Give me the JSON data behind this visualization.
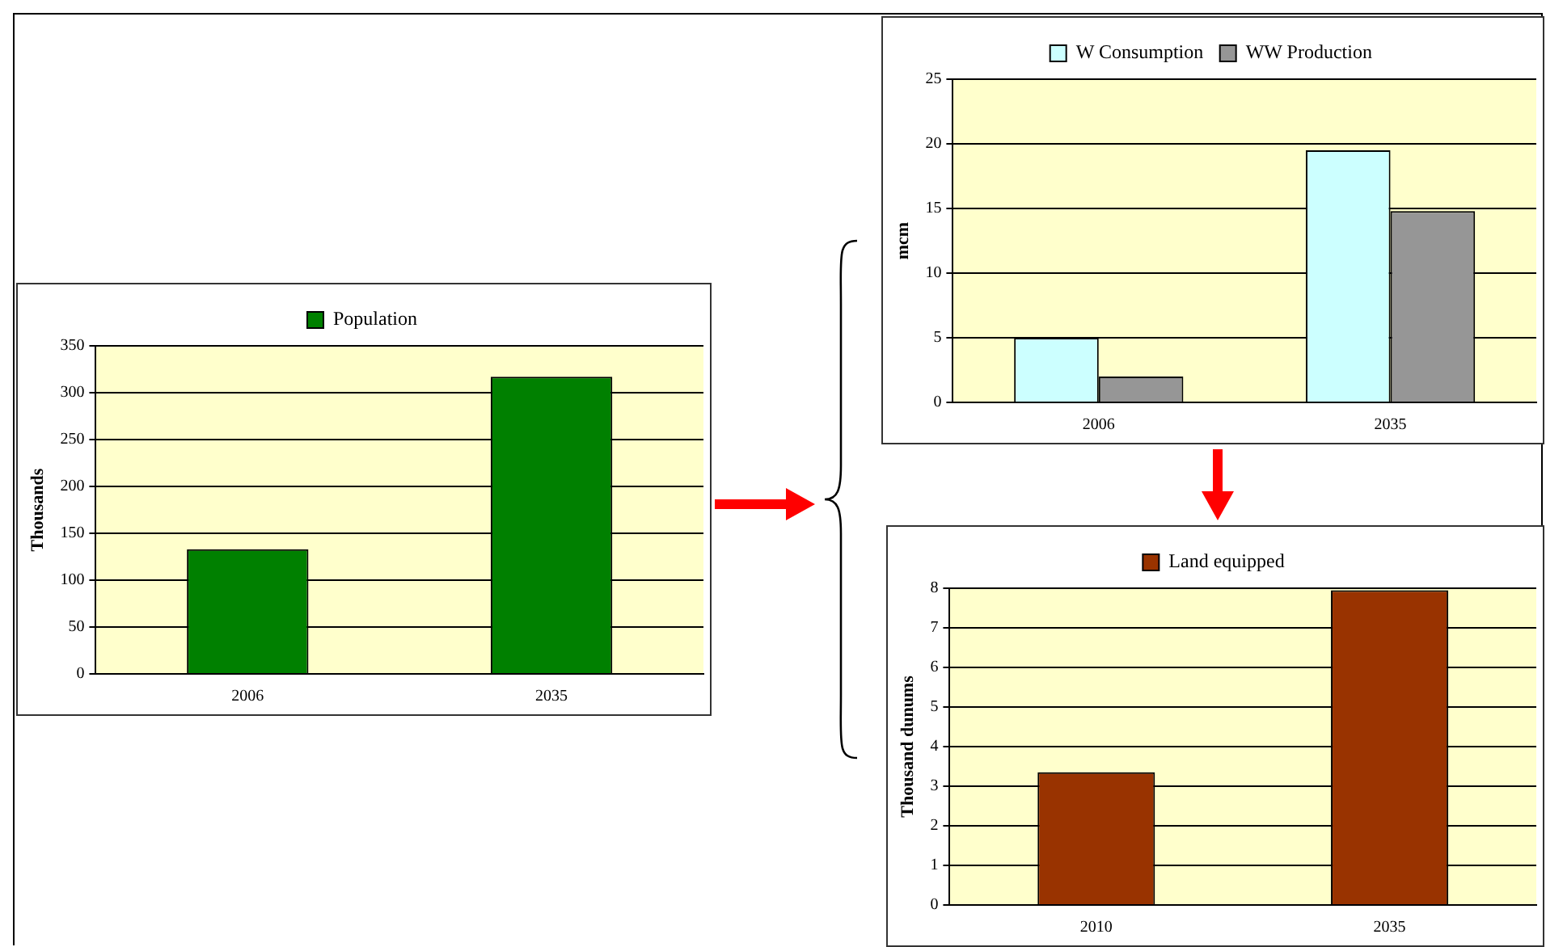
{
  "chart_data": [
    {
      "type": "bar",
      "ylabel": "Thousands",
      "categories": [
        "2006",
        "2035"
      ],
      "series": [
        {
          "name": "Population",
          "color": "#008000",
          "values": [
            133,
            317
          ]
        }
      ],
      "ylim": [
        0,
        350
      ],
      "yticks": [
        0,
        50,
        100,
        150,
        200,
        250,
        300,
        350
      ],
      "grid": "y",
      "legend": "top"
    },
    {
      "type": "bar",
      "ylabel": "mcm",
      "categories": [
        "2006",
        "2035"
      ],
      "series": [
        {
          "name": "W Consumption",
          "color": "#ccffff",
          "values": [
            5,
            19.5
          ]
        },
        {
          "name": "WW Production",
          "color": "#969696",
          "values": [
            2,
            14.8
          ]
        }
      ],
      "ylim": [
        0,
        25
      ],
      "yticks": [
        0,
        5,
        10,
        15,
        20,
        25
      ],
      "grid": "y",
      "legend": "top"
    },
    {
      "type": "bar",
      "ylabel": "Thousand dunums",
      "categories": [
        "2010",
        "2035"
      ],
      "series": [
        {
          "name": "Land equipped",
          "color": "#993300",
          "values": [
            3.35,
            7.95
          ]
        }
      ],
      "ylim": [
        0,
        8
      ],
      "yticks": [
        0,
        1,
        2,
        3,
        4,
        5,
        6,
        7,
        8
      ],
      "grid": "y",
      "legend": "top"
    }
  ]
}
